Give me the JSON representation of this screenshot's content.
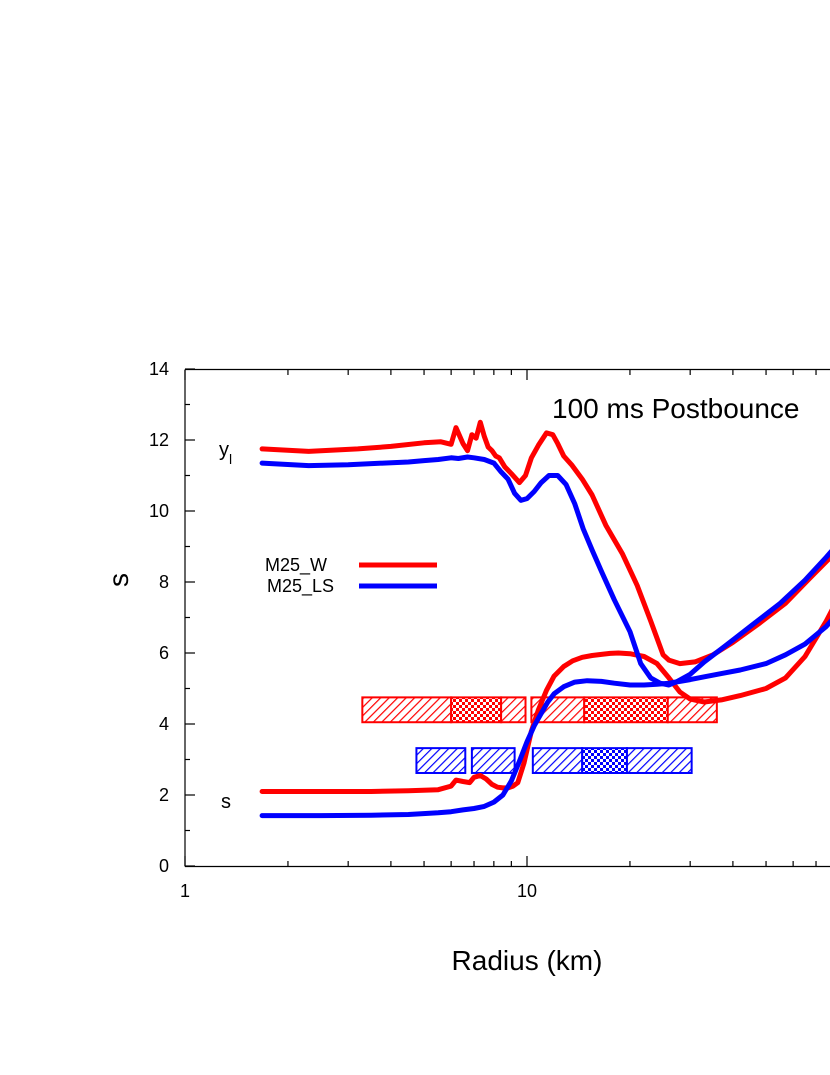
{
  "chart_data": {
    "type": "line",
    "title": "",
    "annotation": "100 ms Postbounce",
    "xlabel": "Radius (km)",
    "ylabel": "s",
    "xscale": "log",
    "xlim": [
      1,
      100
    ],
    "ylim": [
      0,
      14
    ],
    "grid": false,
    "legend_position": "left-middle",
    "y_ticks": [
      "0",
      "2",
      "4",
      "6",
      "8",
      "10",
      "12",
      "14"
    ],
    "x_ticks": [
      "1",
      "10"
    ],
    "curve_labels": {
      "ye": "y",
      "ye_sub": "l",
      "s": "s"
    },
    "colors": {
      "M25_W": "#ff0000",
      "M25_LS": "#0000ff"
    },
    "series": [
      {
        "name": "M25_W",
        "color": "#ff0000",
        "ye": {
          "x": [
            1.68,
            2.3,
            3.2,
            4.0,
            5.0,
            5.6,
            6.0,
            6.2,
            6.5,
            6.7,
            6.9,
            7.1,
            7.3,
            7.5,
            7.7,
            7.9,
            8.1,
            8.3,
            8.6,
            9.0,
            9.5,
            9.9,
            10.3,
            10.8,
            11.4,
            11.9,
            12.3,
            12.8,
            13.5,
            14.5,
            15.5,
            17.0,
            19.0,
            21.0,
            23.0,
            25.0,
            26.0,
            28.0,
            31.0,
            35.0,
            40.0,
            48.0,
            57.0,
            67.0,
            80.0,
            90.0,
            100.0
          ],
          "y": [
            11.75,
            11.68,
            11.75,
            11.82,
            11.92,
            11.95,
            11.88,
            12.35,
            11.9,
            11.7,
            12.15,
            12.05,
            12.5,
            12.1,
            11.8,
            11.7,
            11.55,
            11.5,
            11.25,
            11.05,
            10.8,
            11.0,
            11.5,
            11.85,
            12.2,
            12.15,
            11.9,
            11.55,
            11.3,
            10.9,
            10.45,
            9.6,
            8.8,
            7.9,
            6.9,
            5.95,
            5.8,
            5.7,
            5.75,
            5.95,
            6.3,
            6.85,
            7.4,
            8.1,
            8.85,
            9.6,
            10.3
          ]
        },
        "s": {
          "x": [
            1.68,
            2.5,
            3.5,
            4.5,
            5.5,
            6.0,
            6.2,
            6.5,
            6.8,
            7.0,
            7.3,
            7.6,
            7.9,
            8.2,
            8.5,
            8.8,
            9.1,
            9.4,
            9.8,
            10.3,
            10.8,
            11.4,
            12.0,
            12.8,
            13.6,
            14.5,
            15.5,
            16.5,
            17.5,
            18.5,
            20.0,
            22.0,
            24.0,
            26.0,
            28.0,
            30.0,
            33.0,
            37.0,
            42.0,
            50.0,
            57.0,
            65.0,
            75.0,
            85.0,
            100.0
          ],
          "y": [
            2.1,
            2.1,
            2.1,
            2.12,
            2.15,
            2.25,
            2.42,
            2.38,
            2.35,
            2.5,
            2.55,
            2.45,
            2.3,
            2.22,
            2.2,
            2.2,
            2.25,
            2.35,
            2.9,
            3.8,
            4.4,
            4.95,
            5.35,
            5.62,
            5.78,
            5.88,
            5.93,
            5.96,
            5.99,
            6.0,
            5.98,
            5.9,
            5.7,
            5.3,
            4.9,
            4.7,
            4.62,
            4.68,
            4.8,
            5.0,
            5.3,
            5.9,
            6.9,
            7.9,
            9.3
          ]
        },
        "bars": [
          {
            "x_start": 3.3,
            "x_end": 6.0,
            "pattern": "hatch"
          },
          {
            "x_start": 6.0,
            "x_end": 8.4,
            "pattern": "checker"
          },
          {
            "x_start": 8.4,
            "x_end": 9.9,
            "pattern": "hatch"
          },
          {
            "x_start": 10.3,
            "x_end": 14.7,
            "pattern": "hatch"
          },
          {
            "x_start": 14.7,
            "x_end": 25.8,
            "pattern": "checker"
          },
          {
            "x_start": 25.8,
            "x_end": 35.9,
            "pattern": "hatch"
          }
        ],
        "bar_y_range": [
          4.05,
          4.75
        ]
      },
      {
        "name": "M25_LS",
        "color": "#0000ff",
        "ye": {
          "x": [
            1.68,
            2.3,
            3.0,
            3.8,
            4.5,
            5.0,
            5.5,
            6.0,
            6.3,
            6.7,
            7.0,
            7.5,
            8.0,
            8.4,
            8.8,
            9.2,
            9.6,
            10.0,
            10.5,
            11.0,
            11.6,
            12.3,
            13.0,
            13.8,
            14.6,
            15.5,
            16.5,
            18.0,
            20.0,
            21.5,
            23.0,
            24.5,
            26.0,
            27.5,
            30.0,
            33.0,
            38.0,
            45.0,
            55.0,
            65.0,
            75.0,
            85.0,
            100.0
          ],
          "y": [
            11.35,
            11.28,
            11.3,
            11.35,
            11.38,
            11.42,
            11.45,
            11.5,
            11.48,
            11.52,
            11.5,
            11.45,
            11.35,
            11.1,
            10.9,
            10.5,
            10.3,
            10.35,
            10.55,
            10.8,
            11.0,
            11.0,
            10.75,
            10.2,
            9.5,
            8.9,
            8.3,
            7.5,
            6.6,
            5.7,
            5.3,
            5.15,
            5.1,
            5.2,
            5.4,
            5.75,
            6.2,
            6.75,
            7.4,
            8.05,
            8.7,
            9.3,
            10.1
          ]
        },
        "s": {
          "x": [
            1.68,
            2.5,
            3.5,
            4.5,
            5.5,
            6.0,
            6.5,
            7.0,
            7.5,
            8.0,
            8.5,
            9.0,
            9.5,
            10.0,
            10.5,
            11.0,
            11.5,
            12.0,
            12.8,
            13.8,
            15.0,
            16.5,
            18.0,
            20.0,
            22.0,
            24.0,
            26.0,
            28.0,
            30.0,
            33.0,
            37.0,
            42.0,
            50.0,
            57.0,
            65.0,
            75.0,
            85.0,
            100.0
          ],
          "y": [
            1.42,
            1.42,
            1.43,
            1.45,
            1.5,
            1.53,
            1.58,
            1.62,
            1.68,
            1.8,
            2.0,
            2.4,
            2.95,
            3.5,
            3.95,
            4.3,
            4.62,
            4.85,
            5.05,
            5.18,
            5.22,
            5.2,
            5.15,
            5.1,
            5.1,
            5.12,
            5.15,
            5.2,
            5.25,
            5.33,
            5.42,
            5.52,
            5.7,
            5.95,
            6.25,
            6.75,
            7.35,
            8.2
          ]
        },
        "bars": [
          {
            "x_start": 4.75,
            "x_end": 6.6,
            "pattern": "hatch"
          },
          {
            "x_start": 6.9,
            "x_end": 9.2,
            "pattern": "hatch"
          },
          {
            "x_start": 10.4,
            "x_end": 14.5,
            "pattern": "hatch"
          },
          {
            "x_start": 14.5,
            "x_end": 19.6,
            "pattern": "checker"
          },
          {
            "x_start": 19.6,
            "x_end": 30.3,
            "pattern": "hatch"
          }
        ],
        "bar_y_range": [
          2.62,
          3.32
        ]
      }
    ]
  }
}
